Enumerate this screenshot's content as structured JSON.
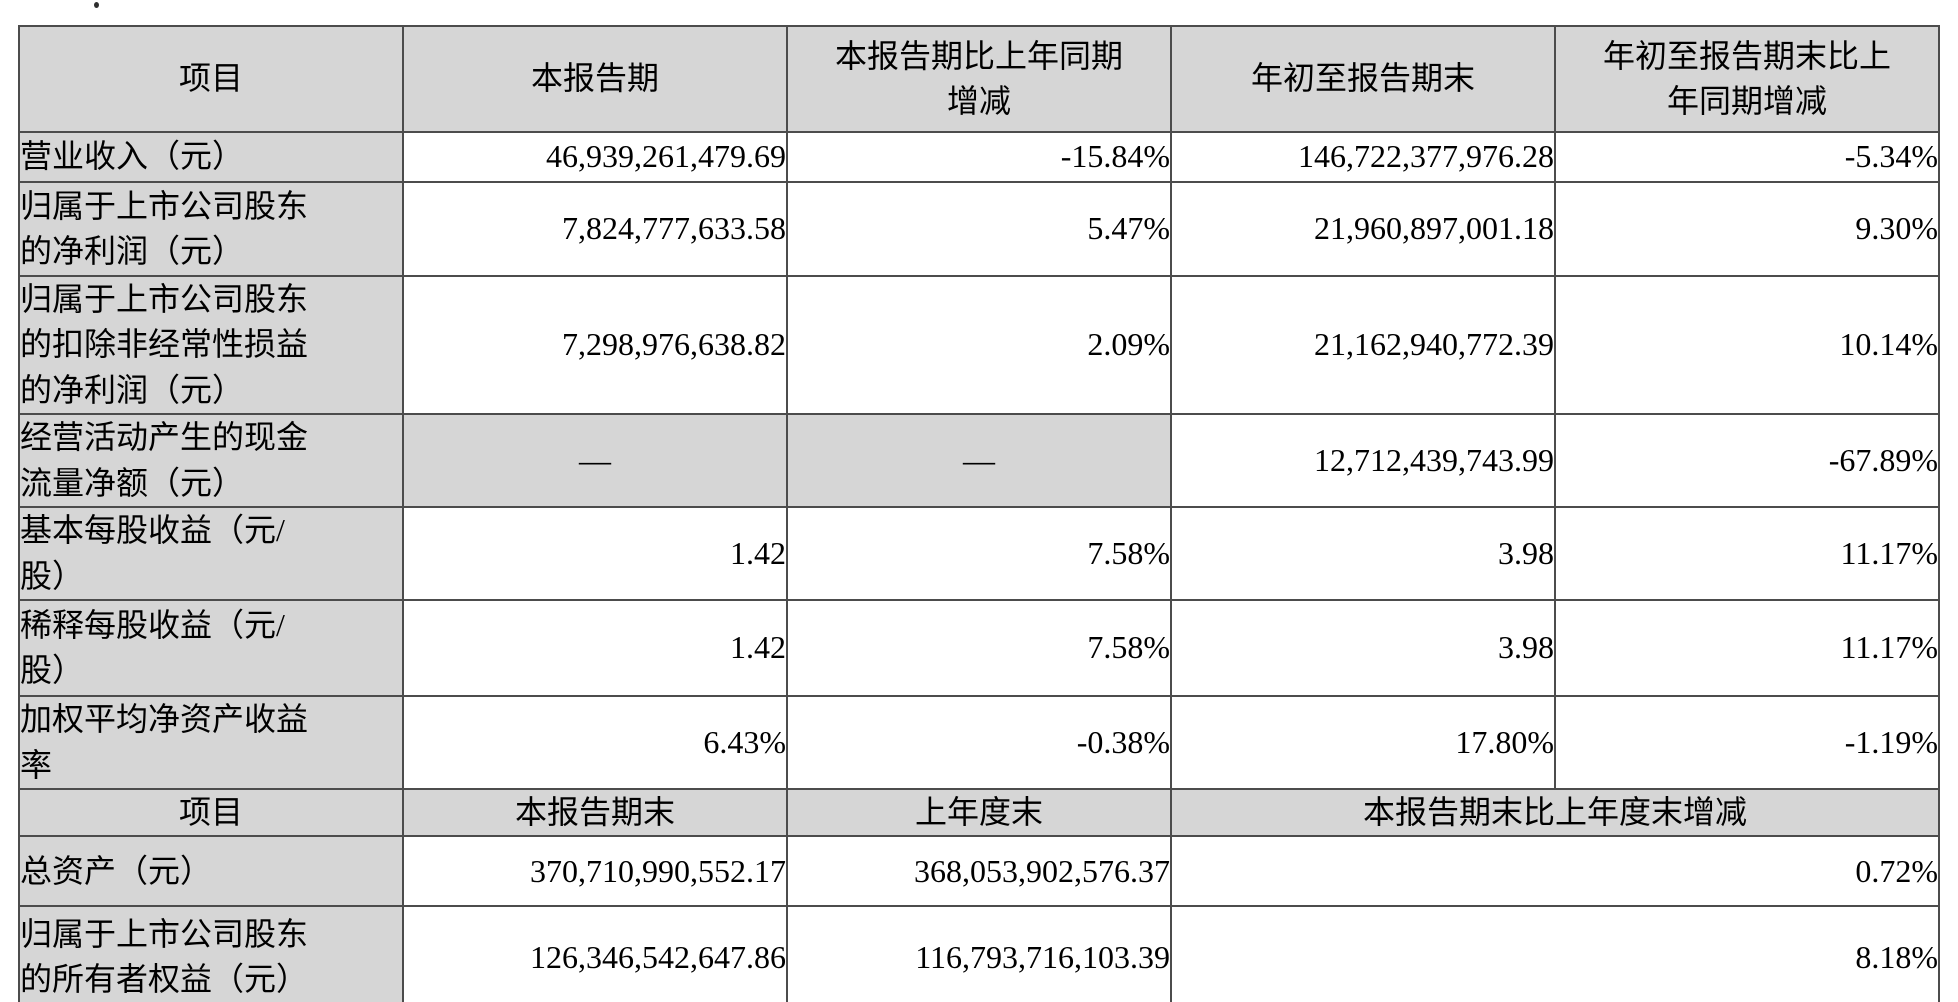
{
  "colors": {
    "header_bg": "#d6d6d6",
    "border": "#4c4c4c",
    "text": "#000000"
  },
  "table1": {
    "headers": {
      "item": "项目",
      "current_period": "本报告期",
      "yoy_change": "本报告期比上年同期\n增减",
      "ytd": "年初至报告期末",
      "ytd_yoy_change": "年初至报告期末比上\n年同期增减"
    },
    "rows": [
      {
        "label": "营业收入（元）",
        "current": "46,939,261,479.69",
        "yoy": "-15.84%",
        "ytd": "146,722,377,976.28",
        "ytd_yoy": "-5.34%"
      },
      {
        "label": "归属于上市公司股东\n的净利润（元）",
        "current": "7,824,777,633.58",
        "yoy": "5.47%",
        "ytd": "21,960,897,001.18",
        "ytd_yoy": "9.30%"
      },
      {
        "label": "归属于上市公司股东\n的扣除非经常性损益\n的净利润（元）",
        "current": "7,298,976,638.82",
        "yoy": "2.09%",
        "ytd": "21,162,940,772.39",
        "ytd_yoy": "10.14%"
      },
      {
        "label": "经营活动产生的现金\n流量净额（元）",
        "current": "—",
        "yoy": "—",
        "ytd": "12,712,439,743.99",
        "ytd_yoy": "-67.89%"
      },
      {
        "label": "基本每股收益（元/\n股）",
        "current": "1.42",
        "yoy": "7.58%",
        "ytd": "3.98",
        "ytd_yoy": "11.17%"
      },
      {
        "label": "稀释每股收益（元/\n股）",
        "current": "1.42",
        "yoy": "7.58%",
        "ytd": "3.98",
        "ytd_yoy": "11.17%"
      },
      {
        "label": "加权平均净资产收益\n率",
        "current": "6.43%",
        "yoy": "-0.38%",
        "ytd": "17.80%",
        "ytd_yoy": "-1.19%"
      }
    ]
  },
  "table2": {
    "headers": {
      "item": "项目",
      "period_end": "本报告期末",
      "prev_year_end": "上年度末",
      "end_vs_prev_change": "本报告期末比上年度末增减"
    },
    "rows": [
      {
        "label": "总资产（元）",
        "period_end": "370,710,990,552.17",
        "prev_year_end": "368,053,902,576.37",
        "change": "0.72%"
      },
      {
        "label": "归属于上市公司股东\n的所有者权益（元）",
        "period_end": "126,346,542,647.86",
        "prev_year_end": "116,793,716,103.39",
        "change": "8.18%"
      }
    ]
  }
}
